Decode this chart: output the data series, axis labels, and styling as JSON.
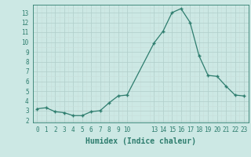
{
  "x": [
    0,
    1,
    2,
    3,
    4,
    5,
    6,
    7,
    8,
    9,
    10,
    13,
    14,
    15,
    16,
    17,
    18,
    19,
    20,
    21,
    22,
    23
  ],
  "y": [
    3.2,
    3.3,
    2.9,
    2.8,
    2.5,
    2.5,
    2.9,
    3.0,
    3.8,
    4.5,
    4.6,
    9.9,
    11.1,
    13.0,
    13.4,
    12.0,
    8.6,
    6.6,
    6.5,
    5.5,
    4.6,
    4.5
  ],
  "xticks": [
    0,
    1,
    2,
    3,
    4,
    5,
    6,
    7,
    8,
    9,
    10,
    13,
    14,
    15,
    16,
    17,
    18,
    19,
    20,
    21,
    22,
    23
  ],
  "xtick_labels": [
    "0",
    "1",
    "2",
    "3",
    "4",
    "5",
    "6",
    "7",
    "8",
    "9",
    "10",
    "13",
    "14",
    "15",
    "16",
    "17",
    "18",
    "19",
    "20",
    "21",
    "22",
    "23"
  ],
  "yticks": [
    2,
    3,
    4,
    5,
    6,
    7,
    8,
    9,
    10,
    11,
    12,
    13
  ],
  "ylim": [
    1.8,
    13.8
  ],
  "xlim": [
    -0.5,
    23.5
  ],
  "xlabel": "Humidex (Indice chaleur)",
  "line_color": "#2e7d6e",
  "marker_color": "#2e7d6e",
  "bg_color": "#cce8e4",
  "grid_major_color": "#b8d8d3",
  "grid_minor_color": "#d0e8e4",
  "tick_color": "#2e7d6e",
  "font_color": "#2e7d6e",
  "font_size_tick": 5.5,
  "font_size_label": 7.0
}
